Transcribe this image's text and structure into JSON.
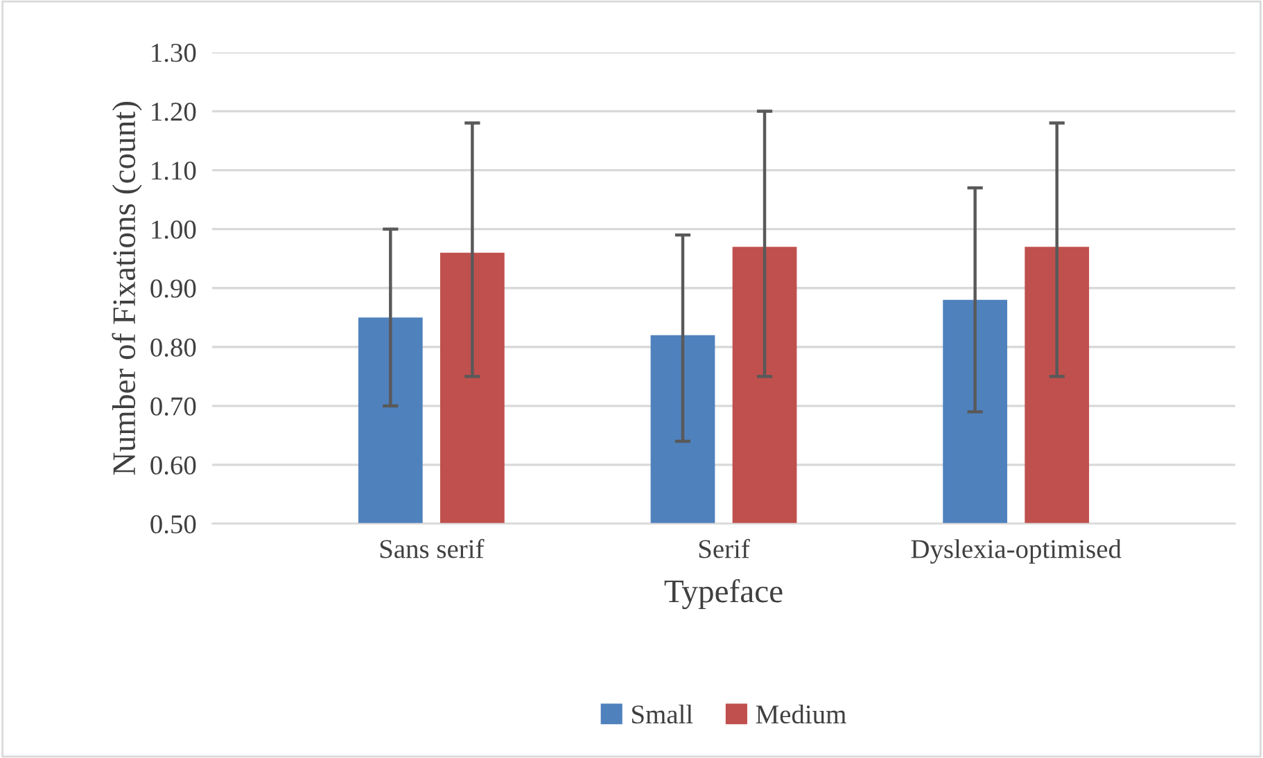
{
  "chart_data": {
    "type": "bar",
    "xlabel": "Typeface",
    "ylabel": "Number of Fixations (count)",
    "categories": [
      "Sans serif",
      "Serif",
      "Dyslexia-optimised"
    ],
    "series": [
      {
        "name": "Small",
        "color": "#4f81bd",
        "values": [
          0.85,
          0.82,
          0.88
        ],
        "errors": [
          [
            0.7,
            1.0
          ],
          [
            0.64,
            0.99
          ],
          [
            0.69,
            1.07
          ]
        ]
      },
      {
        "name": "Medium",
        "color": "#c0504d",
        "values": [
          0.96,
          0.97,
          0.97
        ],
        "errors": [
          [
            0.75,
            1.18
          ],
          [
            0.75,
            1.2
          ],
          [
            0.75,
            1.18
          ]
        ]
      }
    ],
    "ylim": [
      0.5,
      1.3
    ],
    "yticks": [
      {
        "value": 0.5,
        "label": "0.50"
      },
      {
        "value": 0.6,
        "label": "0.60"
      },
      {
        "value": 0.7,
        "label": "0.70"
      },
      {
        "value": 0.8,
        "label": "0.80"
      },
      {
        "value": 0.9,
        "label": "0.90"
      },
      {
        "value": 1.0,
        "label": "1.00"
      },
      {
        "value": 1.1,
        "label": "1.10"
      },
      {
        "value": 1.2,
        "label": "1.20"
      },
      {
        "value": 1.3,
        "label": "1.30"
      }
    ],
    "grid": "y",
    "legend": "bottom"
  }
}
